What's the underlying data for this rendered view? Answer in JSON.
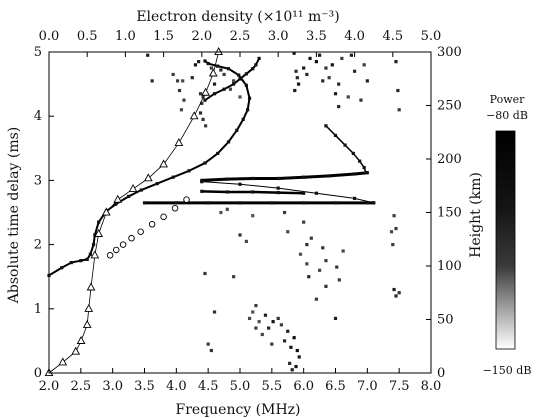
{
  "chart_data": {
    "type": "scatter",
    "x_bottom": {
      "label": "Frequency (MHz)",
      "range": [
        2.0,
        8.0
      ],
      "ticks": [
        "2.0",
        "2.5",
        "3.0",
        "3.5",
        "4.0",
        "4.5",
        "5.0",
        "5.5",
        "6.0",
        "6.5",
        "7.0",
        "7.5",
        "8.0"
      ]
    },
    "x_top": {
      "label": "Electron density (×10¹¹ m⁻³)",
      "range": [
        0.0,
        5.0
      ],
      "ticks": [
        "0.0",
        "0.5",
        "1.0",
        "1.5",
        "2.0",
        "2.5",
        "3.0",
        "3.5",
        "4.0",
        "4.5",
        "5.0"
      ]
    },
    "y_left": {
      "label": "Absolute time delay (ms)",
      "range": [
        0,
        5
      ],
      "ticks": [
        "0",
        "1",
        "2",
        "3",
        "4",
        "5"
      ]
    },
    "y_right": {
      "label": "Height (km)",
      "range": [
        0,
        300
      ],
      "ticks": [
        "0",
        "50",
        "100",
        "150",
        "200",
        "250",
        "300"
      ]
    },
    "colorbar": {
      "title": "Power",
      "max_label": "−80 dB",
      "min_label": "−150 dB",
      "range_db": [
        -150,
        -80
      ]
    },
    "density_profile_triangles": {
      "x_density": [
        0.0,
        0.18,
        0.35,
        0.42,
        0.5,
        0.52,
        0.55,
        0.6,
        0.65,
        0.75,
        0.9,
        1.1,
        1.3,
        1.5,
        1.7,
        1.9,
        2.05,
        2.15,
        2.22
      ],
      "y_height": [
        0,
        10,
        20,
        30,
        45,
        60,
        80,
        110,
        130,
        150,
        162,
        172,
        182,
        195,
        215,
        240,
        262,
        280,
        300
      ]
    },
    "density_profile_circles": {
      "x_density": [
        0.8,
        0.88,
        0.97,
        1.08,
        1.2,
        1.35,
        1.5,
        1.65,
        1.8
      ],
      "y_height": [
        110,
        115,
        120,
        126,
        132,
        139,
        146,
        154,
        162
      ]
    },
    "trace_main": {
      "x_freq": [
        2.0,
        2.2,
        2.35,
        2.5,
        2.6,
        2.65,
        2.7,
        2.72,
        2.78,
        2.9,
        3.05,
        3.25,
        3.45,
        3.7,
        3.95,
        4.2,
        4.45,
        4.65,
        4.82,
        4.95,
        5.05,
        5.12,
        5.15,
        5.1,
        4.98,
        4.82,
        4.65,
        4.5,
        4.45
      ],
      "y_delay": [
        1.52,
        1.64,
        1.72,
        1.75,
        1.77,
        1.85,
        2.0,
        2.15,
        2.35,
        2.52,
        2.63,
        2.75,
        2.85,
        2.95,
        3.05,
        3.15,
        3.27,
        3.42,
        3.6,
        3.78,
        3.95,
        4.1,
        4.28,
        4.48,
        4.64,
        4.74,
        4.78,
        4.82,
        4.86
      ]
    },
    "trace_upper_branch": {
      "x_freq": [
        4.45,
        4.6,
        4.75,
        4.9,
        5.0,
        5.1,
        5.2,
        5.25,
        5.3
      ],
      "y_delay": [
        4.25,
        4.35,
        4.42,
        4.5,
        4.58,
        4.66,
        4.74,
        4.8,
        4.9
      ]
    },
    "trace_diagonal": {
      "x_freq": [
        6.35,
        6.5,
        6.65,
        6.78,
        6.88,
        6.95,
        6.98
      ],
      "y_delay": [
        3.85,
        3.7,
        3.55,
        3.42,
        3.3,
        3.2,
        3.12
      ]
    },
    "trace_horizontal_3": {
      "x_freq": [
        4.4,
        4.8,
        5.2,
        5.6,
        6.0,
        6.4,
        6.8,
        7.0
      ],
      "y_delay": [
        3.0,
        3.02,
        3.03,
        3.03,
        3.05,
        3.07,
        3.1,
        3.12
      ]
    },
    "trace_horizontal_28": {
      "x_freq": [
        4.4,
        4.8,
        5.2,
        5.6,
        6.0
      ],
      "y_delay": [
        2.83,
        2.82,
        2.82,
        2.81,
        2.8
      ]
    },
    "trace_horizontal_265": {
      "x_freq": [
        3.5,
        4.0,
        4.5,
        5.0,
        5.5,
        6.0,
        6.5,
        7.0,
        7.1
      ],
      "y_delay": [
        2.65,
        2.65,
        2.65,
        2.65,
        2.65,
        2.65,
        2.65,
        2.65,
        2.65
      ]
    },
    "trace_slant": {
      "x_freq": [
        4.4,
        5.0,
        5.6,
        6.2,
        6.8,
        7.1
      ],
      "y_delay": [
        2.98,
        2.94,
        2.88,
        2.8,
        2.72,
        2.65
      ]
    },
    "scatter_points": {
      "x_freq": [
        3.55,
        3.62,
        3.95,
        4.05,
        4.1,
        4.25,
        4.3,
        4.35,
        4.4,
        4.55,
        4.6,
        4.7,
        4.75,
        4.85,
        4.38,
        4.42,
        4.46,
        4.9,
        5.0,
        4.5,
        4.55,
        5.4,
        5.45,
        5.52,
        5.6,
        5.65,
        5.7,
        5.75,
        5.8,
        5.85,
        5.9,
        5.93,
        5.88,
        5.82,
        5.78,
        5.5,
        5.35,
        5.3,
        5.25,
        6.0,
        6.05,
        6.1,
        6.2,
        6.25,
        6.3,
        6.35,
        6.4,
        6.45,
        6.5,
        6.55,
        6.6,
        6.7,
        6.75,
        6.8,
        6.9,
        6.95,
        7.0,
        7.45,
        7.48,
        7.5,
        7.42,
        7.45,
        7.5,
        7.4,
        7.38,
        7.42,
        6.3,
        6.35,
        6.05,
        6.08,
        6.12,
        5.2,
        5.15,
        5.25,
        6.52,
        6.56,
        6.62,
        4.08,
        4.12,
        4.38,
        4.42,
        4.02,
        6.55,
        6.5,
        4.6,
        5.7,
        5.75,
        6.0,
        6.05,
        5.95,
        7.45,
        5.0,
        5.1,
        5.2,
        4.9,
        4.45,
        6.25,
        6.35,
        6.2,
        4.7,
        4.8,
        5.85,
        5.88,
        5.92,
        5.86,
        5.9
      ],
      "y_delay": [
        4.95,
        4.55,
        4.65,
        4.4,
        4.55,
        4.6,
        4.8,
        4.85,
        4.2,
        4.75,
        4.5,
        4.72,
        4.65,
        4.42,
        4.05,
        3.95,
        3.85,
        4.55,
        4.3,
        0.45,
        0.35,
        0.9,
        0.7,
        0.8,
        0.85,
        0.75,
        0.5,
        0.65,
        0.4,
        0.55,
        0.35,
        0.25,
        0.1,
        0.05,
        0.15,
        0.45,
        0.6,
        0.8,
        0.7,
        4.75,
        4.65,
        4.9,
        4.85,
        4.95,
        4.55,
        4.75,
        4.6,
        4.8,
        4.35,
        4.5,
        4.9,
        4.3,
        4.95,
        4.7,
        4.25,
        4.8,
        4.55,
        4.85,
        4.4,
        4.1,
        1.3,
        1.2,
        1.25,
        2.0,
        2.2,
        2.45,
        1.95,
        1.75,
        1.7,
        1.5,
        2.1,
        0.95,
        0.85,
        1.05,
        1.65,
        1.45,
        1.9,
        4.1,
        4.25,
        4.35,
        4.3,
        4.55,
        4.15,
        0.85,
        0.95,
        2.5,
        2.2,
        2.35,
        2.0,
        1.85,
        2.25,
        2.15,
        2.05,
        2.45,
        1.5,
        1.55,
        1.6,
        1.35,
        1.15,
        2.5,
        2.55,
        4.98,
        4.7,
        4.5,
        4.4,
        4.6
      ],
      "power_db": [
        -95,
        -100,
        -110,
        -105,
        -115,
        -100,
        -90,
        -95,
        -105,
        -110,
        -95,
        -100,
        -110,
        -115,
        -100,
        -105,
        -110,
        -115,
        -120,
        -110,
        -105,
        -95,
        -100,
        -90,
        -105,
        -110,
        -100,
        -95,
        -90,
        -85,
        -88,
        -92,
        -90,
        -95,
        -100,
        -110,
        -115,
        -120,
        -110,
        -95,
        -100,
        -90,
        -85,
        -95,
        -100,
        -105,
        -110,
        -90,
        -95,
        -100,
        -110,
        -115,
        -95,
        -100,
        -105,
        -110,
        -95,
        -95,
        -100,
        -110,
        -95,
        -100,
        -105,
        -110,
        -115,
        -110,
        -105,
        -110,
        -115,
        -100,
        -110,
        -120,
        -115,
        -110,
        -105,
        -110,
        -115,
        -115,
        -110,
        -105,
        -115,
        -110,
        -100,
        -95,
        -105,
        -110,
        -115,
        -110,
        -105,
        -120,
        -110,
        -105,
        -115,
        -120,
        -110,
        -105,
        -115,
        -105,
        -110,
        -120,
        -115,
        -95,
        -100,
        -90,
        -95,
        -100
      ]
    }
  }
}
